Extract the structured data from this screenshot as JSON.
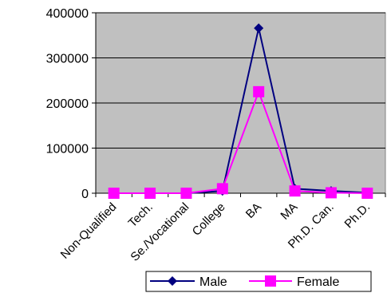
{
  "chart_data": {
    "type": "line",
    "title": "",
    "xlabel": "",
    "ylabel": "",
    "categories": [
      "Non-Qualified",
      "Tech.",
      "Se./Vocational",
      "College",
      "BA",
      "MA",
      "Ph.D. Can.",
      "Ph.D."
    ],
    "ylim": [
      0,
      400000
    ],
    "yticks": [
      0,
      100000,
      200000,
      300000,
      400000
    ],
    "ytick_labels": [
      "0",
      "100000",
      "200000",
      "300000",
      "400000"
    ],
    "grid": true,
    "legend_position": "bottom-right",
    "plot_background": "#c0c0c0",
    "series": [
      {
        "name": "Male",
        "color": "#000080",
        "marker": "diamond",
        "values": [
          0,
          0,
          0,
          5000,
          366000,
          10000,
          5000,
          1000
        ]
      },
      {
        "name": "Female",
        "color": "#ff00ff",
        "marker": "square",
        "values": [
          0,
          0,
          0,
          10000,
          225000,
          5000,
          1000,
          0
        ]
      }
    ]
  }
}
